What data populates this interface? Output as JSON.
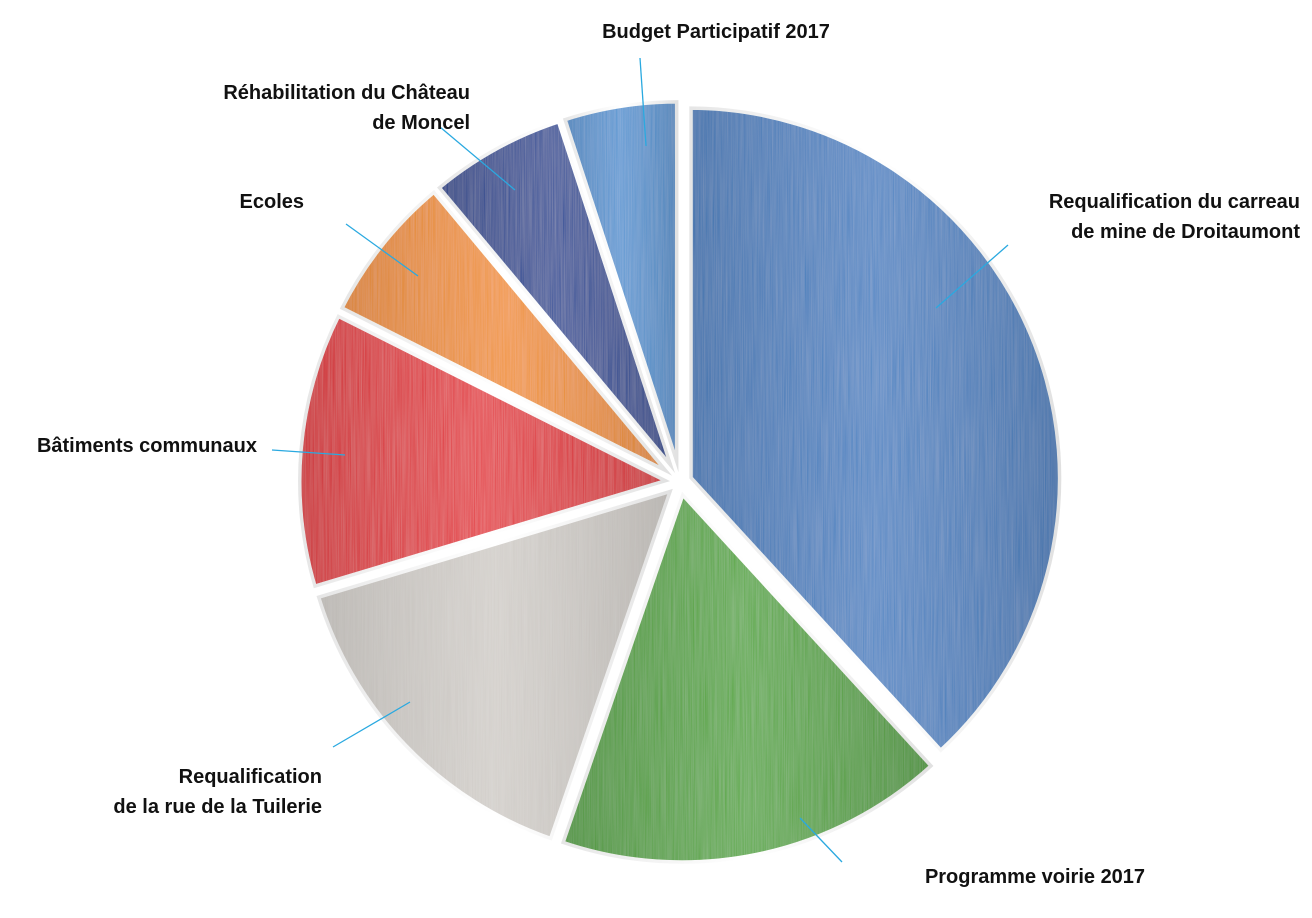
{
  "chart_data": {
    "type": "pie",
    "slices": [
      {
        "name": "Requalification du carreau de mine de Droitaumont",
        "label_lines": [
          "Requalification du carreau",
          "de mine de Droitaumont"
        ],
        "value": 38,
        "color": "#3d7cbf",
        "exploded": true
      },
      {
        "name": "Programme voirie 2017",
        "label_lines": [
          "Programme voirie 2017"
        ],
        "value": 17,
        "color": "#4ba232",
        "exploded": true
      },
      {
        "name": "Requalification de la rue de la Tuilerie",
        "label_lines": [
          "Requalification",
          "de la rue de la Tuilerie"
        ],
        "value": 15,
        "color": "#cfcbc6",
        "exploded": true
      },
      {
        "name": "Bâtiments communaux",
        "label_lines": [
          "Bâtiments communaux"
        ],
        "value": 12,
        "color": "#e2202a",
        "exploded": true
      },
      {
        "name": "Ecoles",
        "label_lines": [
          "Ecoles"
        ],
        "value": 6.5,
        "color": "#f08b1c",
        "exploded": true
      },
      {
        "name": "Réhabilitation du Château de Moncel",
        "label_lines": [
          "Réhabilitation du Château",
          "de Moncel"
        ],
        "value": 6,
        "color": "#1e3f91",
        "exploded": true
      },
      {
        "name": "Budget Participatif 2017",
        "label_lines": [
          "Budget Participatif 2017"
        ],
        "value": 5,
        "color": "#4c8fcf",
        "exploded": true
      }
    ]
  }
}
